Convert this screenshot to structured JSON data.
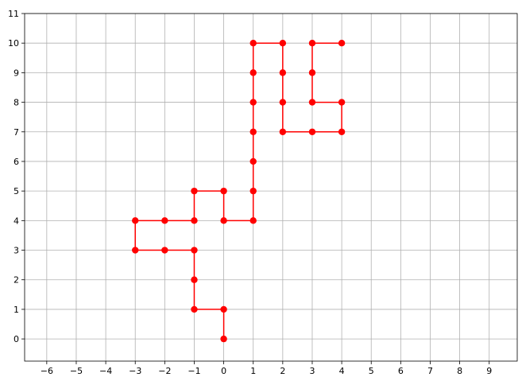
{
  "chart_data": {
    "type": "line",
    "title": "",
    "xlabel": "",
    "ylabel": "",
    "xlim": [
      -6.75,
      9.95
    ],
    "ylim": [
      -0.75,
      11
    ],
    "xticks": [
      -6,
      -5,
      -4,
      -3,
      -2,
      -1,
      0,
      1,
      2,
      3,
      4,
      5,
      6,
      7,
      8,
      9
    ],
    "xtick_labels": [
      "−6",
      "−5",
      "−4",
      "−3",
      "−2",
      "−1",
      "0",
      "1",
      "2",
      "3",
      "4",
      "5",
      "6",
      "7",
      "8",
      "9"
    ],
    "yticks": [
      0,
      1,
      2,
      3,
      4,
      5,
      6,
      7,
      8,
      9,
      10,
      11
    ],
    "ytick_labels": [
      "0",
      "1",
      "2",
      "3",
      "4",
      "5",
      "6",
      "7",
      "8",
      "9",
      "10",
      "11"
    ],
    "grid": true,
    "series": [
      {
        "color": "#ff0000",
        "marker": "circle",
        "x": [
          0,
          0,
          -1,
          -1,
          -1,
          -2,
          -3,
          -3,
          -2,
          -1,
          -1,
          0,
          0,
          1,
          1,
          1,
          1,
          1,
          1,
          1,
          2,
          2,
          2,
          2,
          3,
          4,
          4,
          3,
          3,
          3,
          4
        ],
        "y": [
          0,
          1,
          1,
          2,
          3,
          3,
          3,
          4,
          4,
          4,
          5,
          5,
          4,
          4,
          5,
          6,
          7,
          8,
          9,
          10,
          10,
          9,
          8,
          7,
          7,
          7,
          8,
          8,
          9,
          10,
          10
        ]
      }
    ]
  }
}
